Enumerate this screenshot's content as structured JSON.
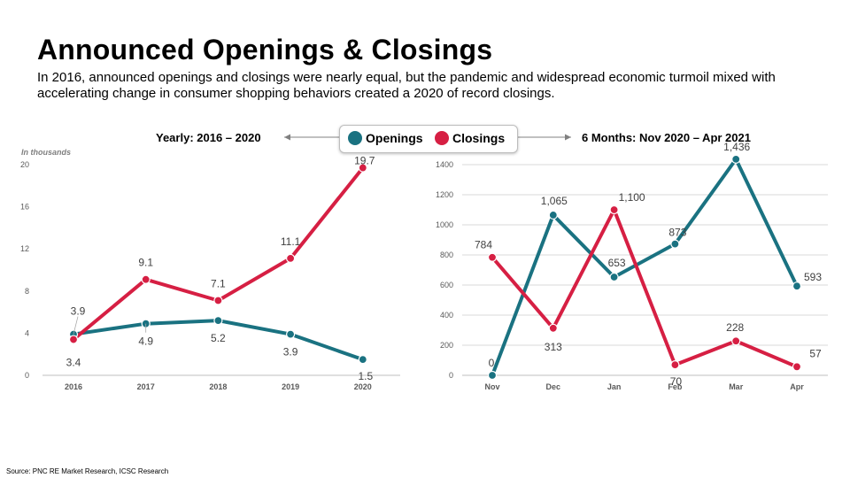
{
  "header": {
    "title": "Announced Openings & Closings",
    "subtitle": "In 2016, announced openings and closings were nearly equal, but the pandemic and widespread economic turmoil mixed with accelerating change in consumer shopping behaviors created a 2020 of record closings."
  },
  "legend": {
    "openings_label": "Openings",
    "closings_label": "Closings"
  },
  "source": "Source: PNC RE Market Research,  ICSC Research",
  "colors": {
    "openings": "#1a7281",
    "closings": "#d61f43",
    "grid": "#d9d9d9",
    "arrow": "#808080"
  },
  "chart_data": [
    {
      "type": "line",
      "title": "Yearly: 2016 – 2020",
      "unit_label": "In thousands",
      "categories": [
        "2016",
        "2017",
        "2018",
        "2019",
        "2020"
      ],
      "yticks": [
        "0",
        "4",
        "8",
        "12",
        "16",
        "20"
      ],
      "ylim": [
        0,
        20
      ],
      "grid": false,
      "series": [
        {
          "name": "Openings",
          "values": [
            3.9,
            4.9,
            5.2,
            3.9,
            1.5
          ],
          "labels": [
            "3.9",
            "4.9",
            "5.2",
            "3.9",
            "1.5"
          ]
        },
        {
          "name": "Closings",
          "values": [
            3.4,
            9.1,
            7.1,
            11.1,
            19.7
          ],
          "labels": [
            "3.4",
            "9.1",
            "7.1",
            "11.1",
            "19.7"
          ]
        }
      ]
    },
    {
      "type": "line",
      "title": "6 Months: Nov 2020 – Apr 2021",
      "categories": [
        "Nov",
        "Dec",
        "Jan",
        "Feb",
        "Mar",
        "Apr"
      ],
      "yticks": [
        "0",
        "200",
        "400",
        "600",
        "800",
        "1000",
        "1200",
        "1400"
      ],
      "ylim": [
        0,
        1400
      ],
      "grid": true,
      "series": [
        {
          "name": "Openings",
          "values": [
            0,
            1065,
            653,
            873,
            1436,
            593
          ],
          "labels": [
            "0",
            "1,065",
            "653",
            "873",
            "1,436",
            "593"
          ]
        },
        {
          "name": "Closings",
          "values": [
            784,
            313,
            1100,
            70,
            228,
            57
          ],
          "labels": [
            "784",
            "313",
            "1,100",
            "70",
            "228",
            "57"
          ]
        }
      ]
    }
  ]
}
